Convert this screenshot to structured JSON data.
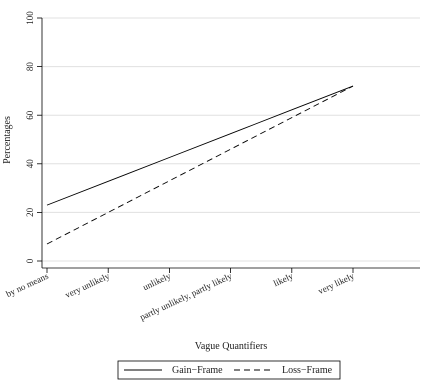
{
  "chart_data": {
    "type": "line",
    "x_label": "Vague Quantifiers",
    "y_label": "Percentages",
    "categories": [
      "by no means",
      "very unlikely",
      "unlikely",
      "partly unlikely, partly likely",
      "likely",
      "very likely"
    ],
    "series": [
      {
        "name": "Gain−Frame",
        "color": "#000000",
        "dash": "solid",
        "values": [
          23,
          32.8,
          42.6,
          52.4,
          62.2,
          72
        ]
      },
      {
        "name": "Loss−Frame",
        "color": "#000000",
        "dash": "dashed",
        "values": [
          7,
          20,
          33,
          46,
          59,
          72
        ]
      }
    ],
    "ylim": [
      0,
      100
    ],
    "yticks": [
      0,
      20,
      40,
      60,
      80,
      100
    ],
    "grid": true,
    "legend": "bottom"
  }
}
